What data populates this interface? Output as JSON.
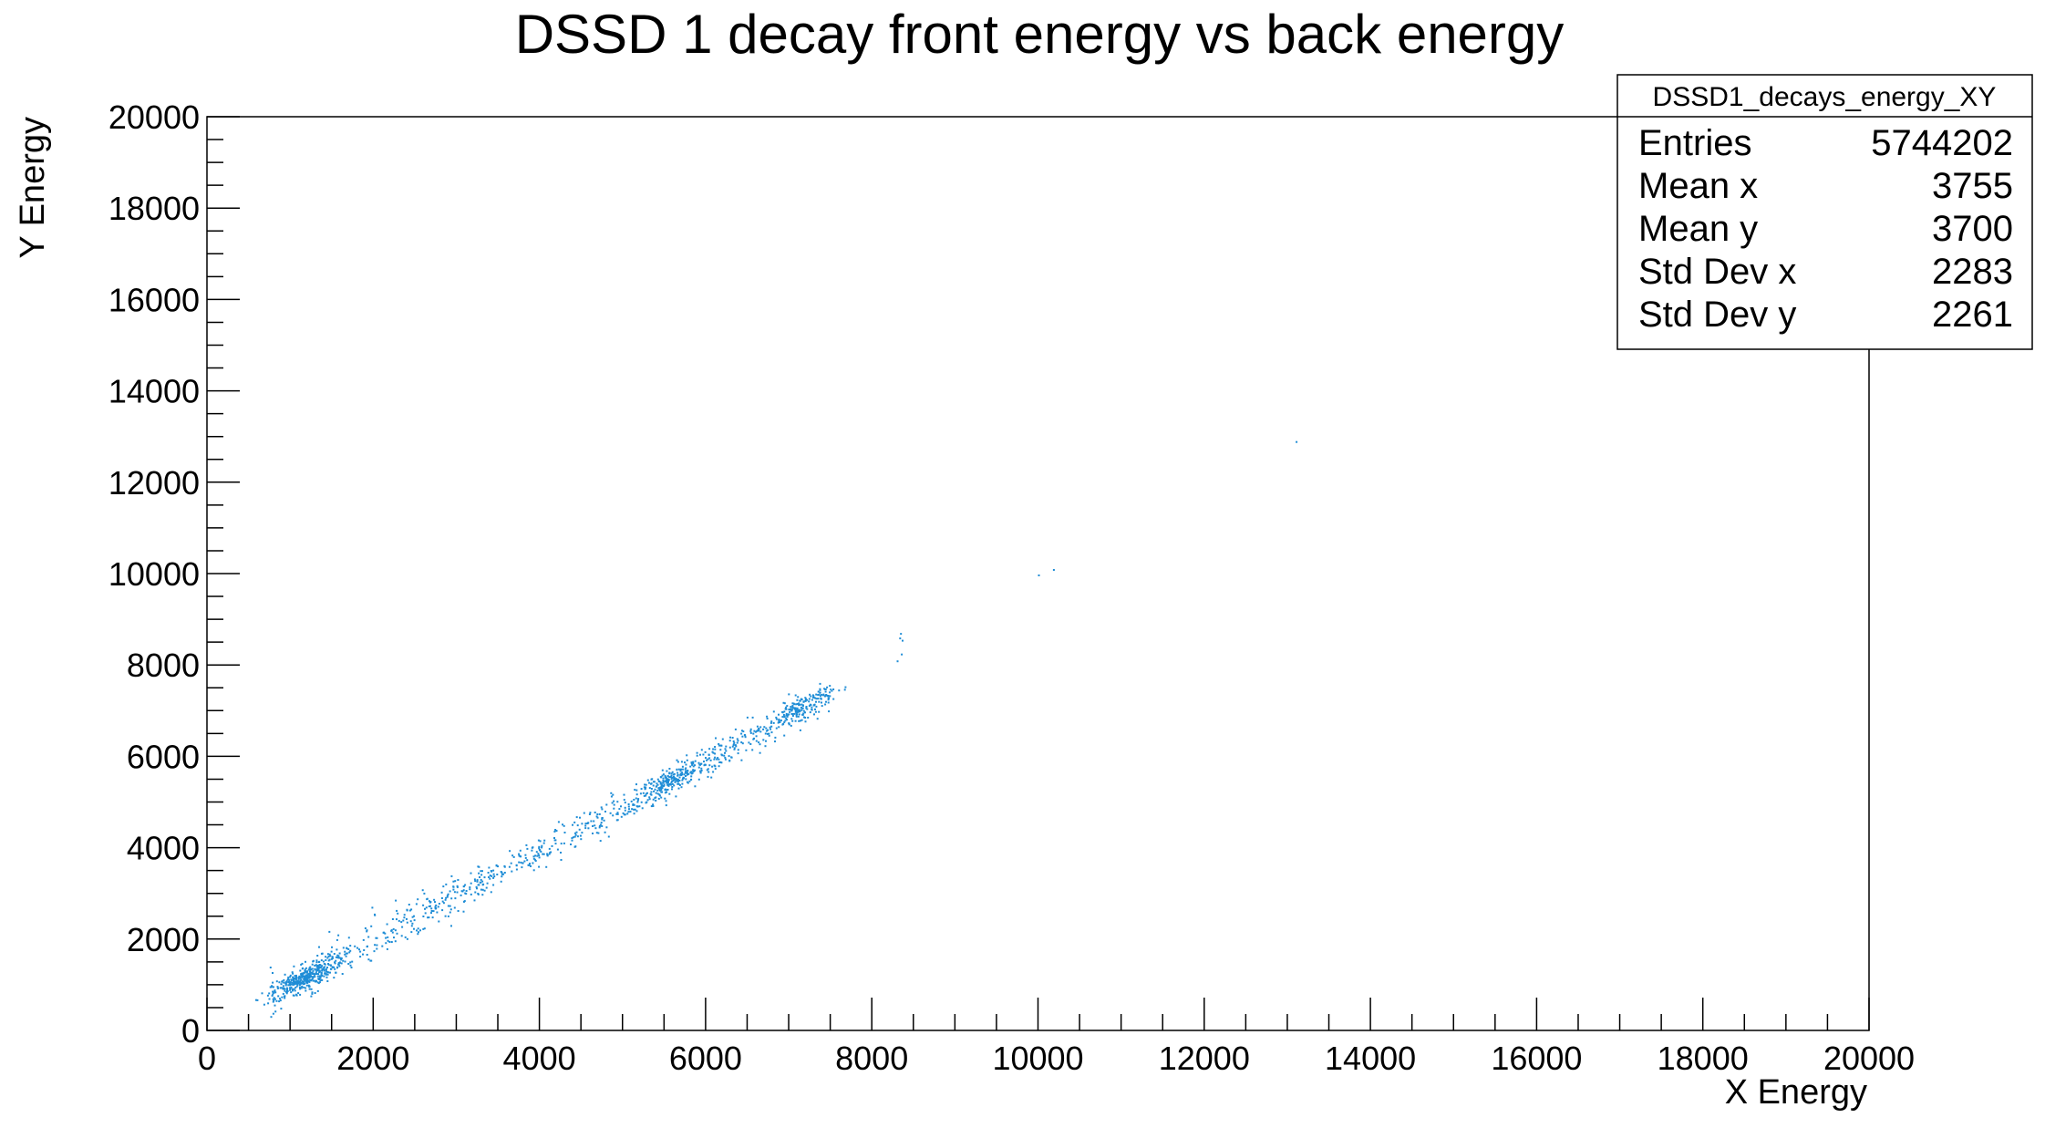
{
  "chart_data": {
    "type": "scatter",
    "title": "DSSD 1 decay front energy vs back energy",
    "xlabel": "X Energy",
    "ylabel": "Y Energy",
    "xlim": [
      0,
      20000
    ],
    "ylim": [
      0,
      20000
    ],
    "xticks": [
      0,
      2000,
      4000,
      6000,
      8000,
      10000,
      12000,
      14000,
      16000,
      18000,
      20000
    ],
    "yticks": [
      0,
      2000,
      4000,
      6000,
      8000,
      10000,
      12000,
      14000,
      16000,
      18000,
      20000
    ],
    "point_color": "#1f8dd6",
    "grid": false,
    "clusters": [
      {
        "x": 1150,
        "y": 1150,
        "count": 320
      },
      {
        "x": 5600,
        "y": 5500,
        "count": 150
      },
      {
        "x": 7150,
        "y": 7100,
        "count": 120
      }
    ],
    "band": {
      "x_start": 750,
      "x_end": 7500,
      "count": 900
    },
    "isolated_points": [
      {
        "x": 8330,
        "y": 8600
      },
      {
        "x": 8360,
        "y": 8550
      },
      {
        "x": 8300,
        "y": 8100
      },
      {
        "x": 8350,
        "y": 8250
      },
      {
        "x": 8340,
        "y": 8700
      },
      {
        "x": 10000,
        "y": 9980
      },
      {
        "x": 10180,
        "y": 10100
      },
      {
        "x": 13100,
        "y": 12900
      }
    ],
    "stats": {
      "name": "DSSD1_decays_energy_XY",
      "rows": [
        {
          "label": "Entries",
          "value": "5744202"
        },
        {
          "label": "Mean x",
          "value": "3755"
        },
        {
          "label": "Mean y",
          "value": "3700"
        },
        {
          "label": "Std Dev x",
          "value": "2283"
        },
        {
          "label": "Std Dev y",
          "value": "2261"
        }
      ]
    }
  }
}
